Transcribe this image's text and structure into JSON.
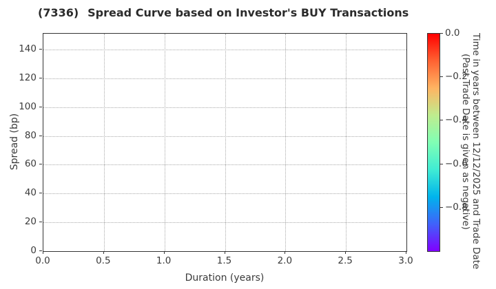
{
  "header": {
    "ticker": "(7336)",
    "title": "Spread Curve based on Investor's BUY Transactions"
  },
  "chart_data": {
    "type": "scatter",
    "title": "(7336) Spread Curve based on Investor's BUY Transactions",
    "xlabel": "Duration (years)",
    "ylabel": "Spread (bp)",
    "xlim": [
      0.0,
      3.0
    ],
    "ylim": [
      0,
      151
    ],
    "x_ticks": [
      "0.0",
      "0.5",
      "1.0",
      "1.5",
      "2.0",
      "2.5",
      "3.0"
    ],
    "y_ticks": [
      0,
      20,
      40,
      60,
      80,
      100,
      120,
      140
    ],
    "grid": true,
    "grid_style": "dotted",
    "points": [],
    "colorbar": {
      "colormap": "rainbow",
      "vmax": 0.0,
      "vmin": -1.0,
      "label_line1": "Time in years between 12/12/2025 and Trade Date",
      "label_line2": "(Past Trade Date is given as negative)",
      "ticks": [
        {
          "label": "0.0",
          "value": 0.0
        },
        {
          "label": "−0.2",
          "value": -0.2
        },
        {
          "label": "−0.4",
          "value": -0.4
        },
        {
          "label": "−0.6",
          "value": -0.6
        },
        {
          "label": "−0.8",
          "value": -0.8
        }
      ],
      "gradient": [
        {
          "pos": 0,
          "color": "#FF0000"
        },
        {
          "pos": 12.5,
          "color": "#FF6232"
        },
        {
          "pos": 25,
          "color": "#FFB462"
        },
        {
          "pos": 37.5,
          "color": "#BFEC8E"
        },
        {
          "pos": 50,
          "color": "#80FFB4"
        },
        {
          "pos": 62.5,
          "color": "#40ECD4"
        },
        {
          "pos": 75,
          "color": "#00B4EC"
        },
        {
          "pos": 87.5,
          "color": "#4062FA"
        },
        {
          "pos": 100,
          "color": "#8000FF"
        }
      ]
    }
  }
}
